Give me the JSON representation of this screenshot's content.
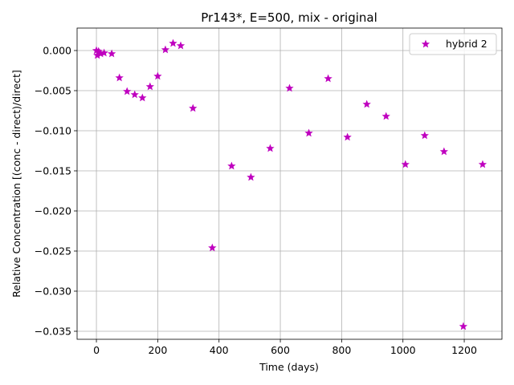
{
  "chart_data": {
    "type": "scatter",
    "title": "Pr143*, E=500, mix - original",
    "xlabel": "Time (days)",
    "ylabel": "Relative Concentration [(conc - direct)/direct]",
    "xlim": [
      -63,
      1323
    ],
    "ylim": [
      -0.036,
      0.0028
    ],
    "xticks": [
      0,
      200,
      400,
      600,
      800,
      1000,
      1200
    ],
    "yticks": [
      0.0,
      -0.005,
      -0.01,
      -0.015,
      -0.02,
      -0.025,
      -0.03,
      -0.035
    ],
    "xtick_labels": [
      "0",
      "200",
      "400",
      "600",
      "800",
      "1000",
      "1200"
    ],
    "ytick_labels": [
      "0.000",
      "−0.005",
      "−0.010",
      "−0.015",
      "−0.020",
      "−0.025",
      "−0.030",
      "−0.035"
    ],
    "grid": true,
    "legend_position": "top-right",
    "series": [
      {
        "name": "hybrid 2",
        "color": "#bf00bf",
        "marker": "star",
        "x": [
          0,
          3,
          7,
          14,
          25,
          50,
          75,
          100,
          125,
          150,
          175,
          200,
          225,
          250,
          275,
          315,
          378,
          441,
          504,
          567,
          630,
          693,
          756,
          819,
          882,
          945,
          1008,
          1071,
          1134,
          1197,
          1260
        ],
        "y": [
          0.0,
          -0.0006,
          -0.0001,
          -0.0004,
          -0.0003,
          -0.0004,
          -0.0034,
          -0.0051,
          -0.0055,
          -0.0059,
          -0.0045,
          -0.0032,
          0.0001,
          0.0009,
          0.0006,
          -0.0072,
          -0.0246,
          -0.0144,
          -0.0158,
          -0.0122,
          -0.0047,
          -0.0103,
          -0.0035,
          -0.0108,
          -0.0067,
          -0.0082,
          -0.0142,
          -0.0106,
          -0.0126,
          -0.0344,
          -0.0142
        ]
      }
    ]
  }
}
